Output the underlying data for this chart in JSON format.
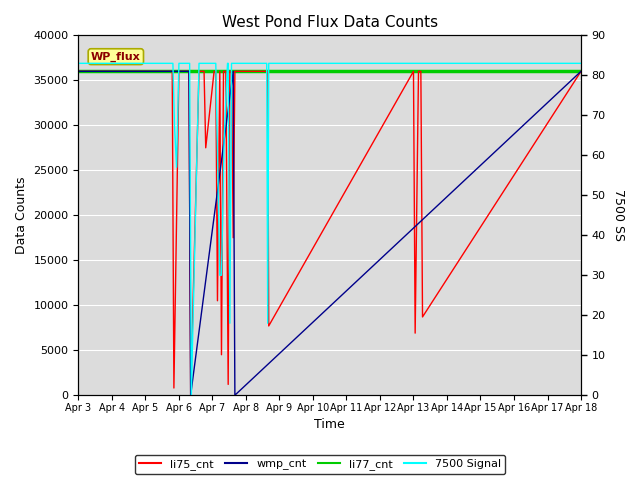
{
  "title": "West Pond Flux Data Counts",
  "ylabel_left": "Data Counts",
  "ylabel_right": "7500 SS",
  "xlabel": "Time",
  "ylim_left": [
    0,
    40000
  ],
  "ylim_right": [
    0,
    90
  ],
  "x_tick_labels": [
    "Apr 3",
    "Apr 4",
    "Apr 5",
    "Apr 6",
    "Apr 7",
    "Apr 8",
    "Apr 9",
    "Apr 10",
    "Apr 11",
    "Apr 12",
    "Apr 13",
    "Apr 14",
    "Apr 15",
    "Apr 16",
    "Apr 17",
    "Apr 18"
  ],
  "background_color": "#dcdcdc",
  "figure_color": "#ffffff",
  "legend_box_label": "WP_flux",
  "legend_box_bg": "#ffff99",
  "legend_box_edge": "#aaaa00",
  "li77_cnt_value": 36000,
  "li75_color": "red",
  "wmp_color": "#00008b",
  "li77_color": "#00cc00",
  "sig_color": "cyan",
  "li75_x": [
    0,
    2.8,
    2.8,
    2.85,
    2.85,
    3.0,
    3.0,
    3.3,
    3.3,
    3.35,
    3.35,
    3.6,
    3.6,
    3.75,
    3.75,
    3.8,
    3.8,
    4.05,
    4.05,
    4.1,
    4.1,
    4.15,
    4.15,
    4.22,
    4.22,
    4.27,
    4.27,
    4.33,
    4.33,
    4.4,
    4.4,
    4.47,
    4.47,
    4.52,
    4.52,
    4.57,
    4.57,
    4.62,
    4.62,
    4.67,
    4.67,
    4.72,
    4.72,
    5.6,
    5.6,
    5.65,
    5.65,
    5.68,
    5.68,
    10.0,
    10.0,
    10.05,
    10.05,
    10.15,
    10.15,
    10.22,
    10.22,
    10.27,
    10.27,
    15.0
  ],
  "li75_y": [
    36000,
    36000,
    36000,
    800,
    800,
    36000,
    36000,
    36000,
    36000,
    0,
    0,
    36000,
    36000,
    36000,
    36000,
    27500,
    27500,
    36000,
    36000,
    36000,
    36000,
    10500,
    10500,
    36000,
    36000,
    4500,
    4500,
    36000,
    36000,
    36000,
    36000,
    1200,
    1200,
    36000,
    36000,
    36000,
    36000,
    17500,
    17500,
    36000,
    36000,
    36000,
    36000,
    36000,
    36000,
    36000,
    36000,
    7700,
    7700,
    36000,
    36000,
    6900,
    6900,
    36000,
    36000,
    36000,
    36000,
    8700,
    8700,
    36000
  ],
  "wmp_x": [
    0,
    3.3,
    3.3,
    3.35,
    3.35,
    4.62,
    4.62,
    4.67,
    4.67,
    15.0
  ],
  "wmp_y": [
    36000,
    36000,
    36000,
    0,
    0,
    36000,
    36000,
    0,
    0,
    36000
  ],
  "sig_x": [
    0,
    2.8,
    2.8,
    2.82,
    2.82,
    2.87,
    2.87,
    2.93,
    2.93,
    3.0,
    3.0,
    3.3,
    3.3,
    3.32,
    3.32,
    3.37,
    3.37,
    3.6,
    3.6,
    4.05,
    4.05,
    4.1,
    4.1,
    4.22,
    4.22,
    4.27,
    4.27,
    4.35,
    4.35,
    4.45,
    4.45,
    4.47,
    4.47,
    4.52,
    4.52,
    4.57,
    4.57,
    4.62,
    4.62,
    4.72,
    4.72,
    5.6,
    5.6,
    5.62,
    5.62,
    5.65,
    5.65,
    5.68,
    5.68,
    15.0
  ],
  "sig_y": [
    83,
    83,
    83,
    83,
    83,
    67,
    67,
    57,
    57,
    83,
    83,
    83,
    83,
    83,
    83,
    0,
    0,
    83,
    83,
    83,
    83,
    83,
    83,
    30,
    30,
    30,
    30,
    64,
    64,
    83,
    83,
    83,
    83,
    18,
    18,
    83,
    83,
    83,
    83,
    83,
    83,
    83,
    83,
    83,
    83,
    18,
    18,
    83,
    83,
    83
  ],
  "yticks_left": [
    0,
    5000,
    10000,
    15000,
    20000,
    25000,
    30000,
    35000,
    40000
  ],
  "yticks_right": [
    0,
    10,
    20,
    30,
    40,
    50,
    60,
    70,
    80,
    90
  ]
}
